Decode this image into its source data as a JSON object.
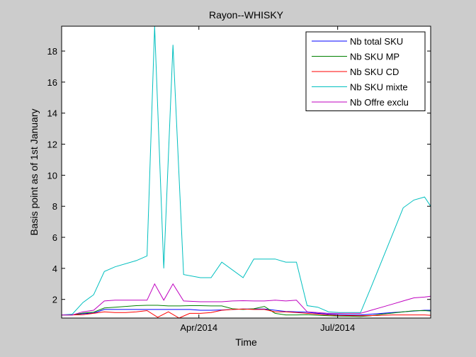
{
  "chart_data": {
    "type": "line",
    "title": "Rayon--WHISKY",
    "xlabel": "Time",
    "ylabel": "Basis point as of 1st January",
    "x_start": "2014-01-01",
    "x_end": "2014-08-31",
    "xlim": [
      "2014-01-01",
      "2014-08-31"
    ],
    "ylim": [
      0.8,
      19.6
    ],
    "x_ticks": [
      {
        "date": "2014-04-01",
        "label": "Apr/2014"
      },
      {
        "date": "2014-07-01",
        "label": "Jul/2014"
      }
    ],
    "y_ticks": [
      2,
      4,
      6,
      8,
      10,
      12,
      14,
      16,
      18
    ],
    "grid": false,
    "legend": "top-right",
    "series": [
      {
        "name": "Nb total SKU",
        "color": "#0000ff",
        "points": [
          [
            "2014-01-01",
            1.0
          ],
          [
            "2014-01-08",
            1.0
          ],
          [
            "2014-01-15",
            1.08
          ],
          [
            "2014-01-22",
            1.12
          ],
          [
            "2014-01-29",
            1.35
          ],
          [
            "2014-02-05",
            1.35
          ],
          [
            "2014-02-12",
            1.35
          ],
          [
            "2014-02-19",
            1.35
          ],
          [
            "2014-02-26",
            1.35
          ],
          [
            "2014-03-05",
            1.35
          ],
          [
            "2014-03-12",
            1.35
          ],
          [
            "2014-03-19",
            1.35
          ],
          [
            "2014-03-26",
            1.35
          ],
          [
            "2014-04-02",
            1.3
          ],
          [
            "2014-04-09",
            1.3
          ],
          [
            "2014-04-16",
            1.32
          ],
          [
            "2014-04-23",
            1.35
          ],
          [
            "2014-04-30",
            1.38
          ],
          [
            "2014-05-07",
            1.38
          ],
          [
            "2014-05-14",
            1.38
          ],
          [
            "2014-05-21",
            1.3
          ],
          [
            "2014-05-28",
            1.22
          ],
          [
            "2014-06-04",
            1.2
          ],
          [
            "2014-06-11",
            1.18
          ],
          [
            "2014-06-18",
            1.1
          ],
          [
            "2014-06-25",
            1.05
          ],
          [
            "2014-07-02",
            1.02
          ],
          [
            "2014-07-09",
            1.0
          ],
          [
            "2014-07-16",
            1.0
          ],
          [
            "2014-07-23",
            1.05
          ],
          [
            "2014-07-30",
            1.1
          ],
          [
            "2014-08-06",
            1.15
          ],
          [
            "2014-08-13",
            1.2
          ],
          [
            "2014-08-20",
            1.25
          ],
          [
            "2014-08-27",
            1.3
          ],
          [
            "2014-08-31",
            1.3
          ]
        ]
      },
      {
        "name": "Nb SKU MP",
        "color": "#008000",
        "points": [
          [
            "2014-01-01",
            1.0
          ],
          [
            "2014-01-08",
            1.0
          ],
          [
            "2014-01-15",
            1.12
          ],
          [
            "2014-01-22",
            1.18
          ],
          [
            "2014-01-29",
            1.45
          ],
          [
            "2014-02-05",
            1.5
          ],
          [
            "2014-02-12",
            1.55
          ],
          [
            "2014-02-19",
            1.6
          ],
          [
            "2014-02-26",
            1.62
          ],
          [
            "2014-03-05",
            1.62
          ],
          [
            "2014-03-12",
            1.58
          ],
          [
            "2014-03-19",
            1.58
          ],
          [
            "2014-03-26",
            1.6
          ],
          [
            "2014-04-02",
            1.6
          ],
          [
            "2014-04-09",
            1.58
          ],
          [
            "2014-04-16",
            1.58
          ],
          [
            "2014-04-23",
            1.4
          ],
          [
            "2014-04-30",
            1.35
          ],
          [
            "2014-05-07",
            1.4
          ],
          [
            "2014-05-14",
            1.55
          ],
          [
            "2014-05-21",
            1.1
          ],
          [
            "2014-05-28",
            1.0
          ],
          [
            "2014-06-04",
            1.0
          ],
          [
            "2014-06-11",
            1.02
          ],
          [
            "2014-06-18",
            0.98
          ],
          [
            "2014-06-25",
            0.95
          ],
          [
            "2014-07-02",
            0.93
          ],
          [
            "2014-07-09",
            0.92
          ],
          [
            "2014-07-16",
            0.9
          ],
          [
            "2014-07-23",
            0.95
          ],
          [
            "2014-07-30",
            1.05
          ],
          [
            "2014-08-06",
            1.12
          ],
          [
            "2014-08-13",
            1.2
          ],
          [
            "2014-08-20",
            1.27
          ],
          [
            "2014-08-27",
            1.28
          ],
          [
            "2014-08-31",
            1.25
          ]
        ]
      },
      {
        "name": "Nb SKU CD",
        "color": "#ff0000",
        "points": [
          [
            "2014-01-01",
            1.0
          ],
          [
            "2014-01-08",
            1.0
          ],
          [
            "2014-01-15",
            1.02
          ],
          [
            "2014-01-22",
            1.1
          ],
          [
            "2014-01-29",
            1.2
          ],
          [
            "2014-02-05",
            1.15
          ],
          [
            "2014-02-12",
            1.15
          ],
          [
            "2014-02-19",
            1.2
          ],
          [
            "2014-02-26",
            1.28
          ],
          [
            "2014-03-05",
            0.85
          ],
          [
            "2014-03-12",
            1.2
          ],
          [
            "2014-03-19",
            0.8
          ],
          [
            "2014-03-26",
            1.1
          ],
          [
            "2014-04-02",
            1.1
          ],
          [
            "2014-04-09",
            1.15
          ],
          [
            "2014-04-16",
            1.3
          ],
          [
            "2014-04-23",
            1.35
          ],
          [
            "2014-04-30",
            1.38
          ],
          [
            "2014-05-07",
            1.35
          ],
          [
            "2014-05-14",
            1.35
          ],
          [
            "2014-05-21",
            1.2
          ],
          [
            "2014-05-28",
            1.2
          ],
          [
            "2014-06-04",
            1.15
          ],
          [
            "2014-06-11",
            1.1
          ],
          [
            "2014-06-18",
            1.05
          ],
          [
            "2014-06-25",
            1.0
          ],
          [
            "2014-07-02",
            0.97
          ],
          [
            "2014-07-09",
            0.96
          ],
          [
            "2014-07-16",
            0.95
          ],
          [
            "2014-07-23",
            0.96
          ],
          [
            "2014-07-30",
            0.98
          ],
          [
            "2014-08-06",
            1.0
          ],
          [
            "2014-08-13",
            1.0
          ],
          [
            "2014-08-20",
            1.0
          ],
          [
            "2014-08-27",
            1.0
          ],
          [
            "2014-08-31",
            0.98
          ]
        ]
      },
      {
        "name": "Nb SKU mixte",
        "color": "#00bfbf",
        "points": [
          [
            "2014-01-01",
            1.0
          ],
          [
            "2014-01-08",
            1.05
          ],
          [
            "2014-01-15",
            1.8
          ],
          [
            "2014-01-22",
            2.3
          ],
          [
            "2014-01-29",
            3.8
          ],
          [
            "2014-02-05",
            4.1
          ],
          [
            "2014-02-19",
            4.5
          ],
          [
            "2014-02-26",
            4.8
          ],
          [
            "2014-03-03",
            19.6
          ],
          [
            "2014-03-09",
            4.0
          ],
          [
            "2014-03-15",
            18.4
          ],
          [
            "2014-03-22",
            3.6
          ],
          [
            "2014-04-02",
            3.4
          ],
          [
            "2014-04-09",
            3.4
          ],
          [
            "2014-04-16",
            4.4
          ],
          [
            "2014-04-30",
            3.4
          ],
          [
            "2014-05-07",
            4.6
          ],
          [
            "2014-05-21",
            4.6
          ],
          [
            "2014-05-28",
            4.4
          ],
          [
            "2014-06-04",
            4.4
          ],
          [
            "2014-06-11",
            1.6
          ],
          [
            "2014-06-18",
            1.5
          ],
          [
            "2014-06-25",
            1.2
          ],
          [
            "2014-07-02",
            1.15
          ],
          [
            "2014-07-09",
            1.15
          ],
          [
            "2014-07-16",
            1.15
          ],
          [
            "2014-07-23",
            2.8
          ],
          [
            "2014-07-30",
            4.5
          ],
          [
            "2014-08-06",
            6.2
          ],
          [
            "2014-08-13",
            7.9
          ],
          [
            "2014-08-20",
            8.4
          ],
          [
            "2014-08-27",
            8.6
          ],
          [
            "2014-08-31",
            8.0
          ]
        ]
      },
      {
        "name": "Nb Offre exclu",
        "color": "#bf00bf",
        "points": [
          [
            "2014-01-01",
            1.0
          ],
          [
            "2014-01-08",
            1.0
          ],
          [
            "2014-01-15",
            1.2
          ],
          [
            "2014-01-22",
            1.3
          ],
          [
            "2014-01-29",
            1.9
          ],
          [
            "2014-02-05",
            1.95
          ],
          [
            "2014-02-12",
            1.95
          ],
          [
            "2014-02-19",
            1.95
          ],
          [
            "2014-02-26",
            1.95
          ],
          [
            "2014-03-03",
            3.0
          ],
          [
            "2014-03-09",
            1.95
          ],
          [
            "2014-03-15",
            3.0
          ],
          [
            "2014-03-22",
            1.9
          ],
          [
            "2014-04-02",
            1.85
          ],
          [
            "2014-04-09",
            1.85
          ],
          [
            "2014-04-16",
            1.85
          ],
          [
            "2014-04-23",
            1.9
          ],
          [
            "2014-04-30",
            1.92
          ],
          [
            "2014-05-07",
            1.9
          ],
          [
            "2014-05-14",
            1.9
          ],
          [
            "2014-05-21",
            1.95
          ],
          [
            "2014-05-28",
            1.9
          ],
          [
            "2014-06-04",
            1.95
          ],
          [
            "2014-06-11",
            1.2
          ],
          [
            "2014-06-18",
            1.15
          ],
          [
            "2014-06-25",
            1.1
          ],
          [
            "2014-07-02",
            1.1
          ],
          [
            "2014-07-09",
            1.1
          ],
          [
            "2014-07-16",
            1.1
          ],
          [
            "2014-07-23",
            1.3
          ],
          [
            "2014-07-30",
            1.5
          ],
          [
            "2014-08-06",
            1.7
          ],
          [
            "2014-08-13",
            1.9
          ],
          [
            "2014-08-20",
            2.1
          ],
          [
            "2014-08-27",
            2.15
          ],
          [
            "2014-08-31",
            2.2
          ]
        ]
      }
    ]
  }
}
